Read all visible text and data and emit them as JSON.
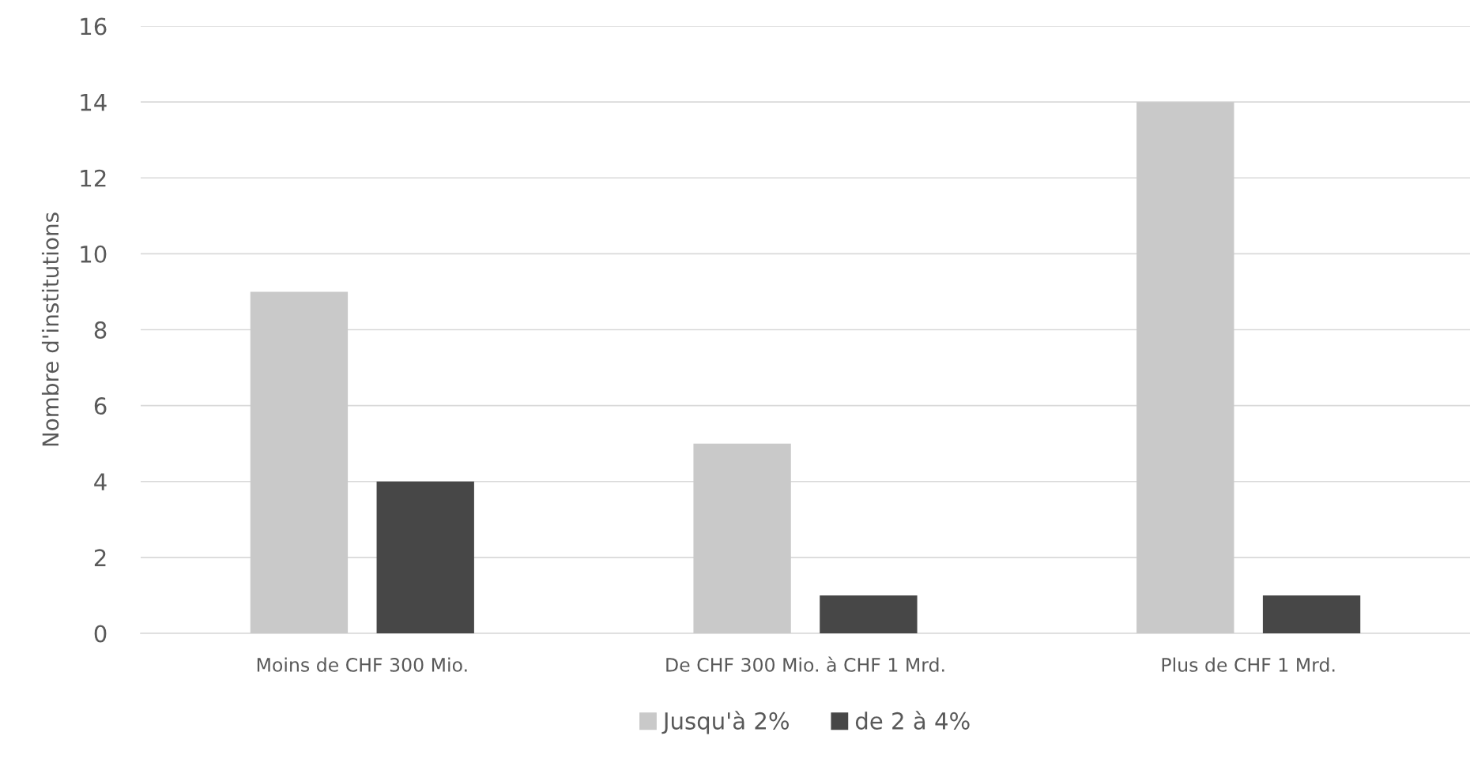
{
  "chart_data": {
    "type": "bar",
    "ylabel": "Nombre d'institutions",
    "categories": [
      "Moins de CHF 300 Mio.",
      "De CHF 300 Mio. à CHF 1 Mrd.",
      "Plus de CHF 1 Mrd."
    ],
    "series": [
      {
        "name": "Jusqu'à 2%",
        "color": "#c9c9c9",
        "values": [
          9,
          5,
          14
        ]
      },
      {
        "name": "de 2 à 4%",
        "color": "#474747",
        "values": [
          4,
          1,
          1
        ]
      }
    ],
    "ylim": [
      0,
      16
    ],
    "yticks": [
      0,
      2,
      4,
      6,
      8,
      10,
      12,
      14,
      16
    ],
    "grid": "y",
    "legend": "bottom"
  }
}
